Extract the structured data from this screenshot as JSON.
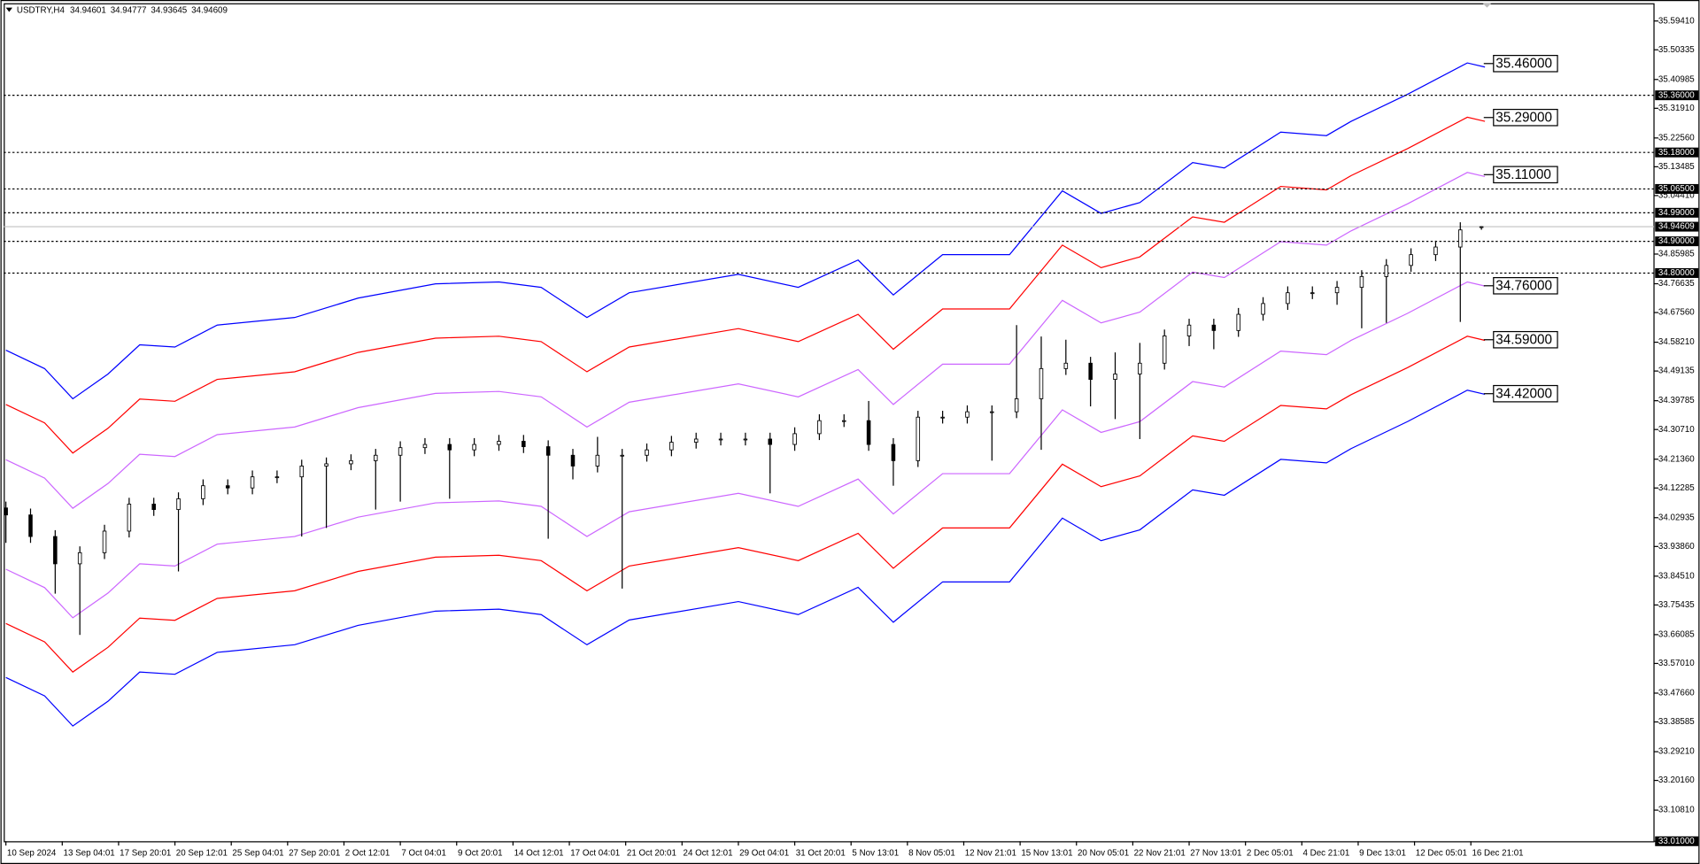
{
  "chart_data": {
    "type": "candlestick",
    "symbol": "USDTRY,H4",
    "xlim": [
      0,
      468
    ],
    "xticks": [
      {
        "value": 0,
        "label": "10 Sep 2024"
      },
      {
        "value": 16,
        "label": "13 Sep 04:01"
      },
      {
        "value": 32,
        "label": "17 Sep 20:01"
      },
      {
        "value": 48,
        "label": "20 Sep 12:01"
      },
      {
        "value": 64,
        "label": "25 Sep 04:01"
      },
      {
        "value": 80,
        "label": "27 Sep 20:01"
      },
      {
        "value": 96,
        "label": "2 Oct 12:01"
      },
      {
        "value": 112,
        "label": "7 Oct 04:01"
      },
      {
        "value": 128,
        "label": "9 Oct 20:01"
      },
      {
        "value": 144,
        "label": "14 Oct 12:01"
      },
      {
        "value": 160,
        "label": "17 Oct 04:01"
      },
      {
        "value": 176,
        "label": "21 Oct 20:01"
      },
      {
        "value": 192,
        "label": "24 Oct 12:01"
      },
      {
        "value": 208,
        "label": "29 Oct 04:01"
      },
      {
        "value": 224,
        "label": "31 Oct 20:01"
      },
      {
        "value": 240,
        "label": "5 Nov 13:01"
      },
      {
        "value": 256,
        "label": "8 Nov 05:01"
      },
      {
        "value": 272,
        "label": "12 Nov 21:01"
      },
      {
        "value": 288,
        "label": "15 Nov 13:01"
      },
      {
        "value": 304,
        "label": "20 Nov 05:01"
      },
      {
        "value": 320,
        "label": "22 Nov 21:01"
      },
      {
        "value": 336,
        "label": "27 Nov 13:01"
      },
      {
        "value": 352,
        "label": "2 Dec 05:01"
      },
      {
        "value": 368,
        "label": "4 Dec 21:01"
      },
      {
        "value": 384,
        "label": "9 Dec 13:01"
      },
      {
        "value": 400,
        "label": "12 Dec 05:01"
      },
      {
        "value": 416,
        "label": "16 Dec 21:01"
      }
    ],
    "ylim": [
      33.01,
      35.65
    ],
    "yticks": [
      {
        "value": 35.5941,
        "label": "35.59410"
      },
      35.50335,
      35.40985,
      {
        "value": 35.3191,
        "label": "35.31910"
      },
      {
        "value": 35.2256,
        "label": "35.22560"
      },
      35.13485,
      {
        "value": 35.0441,
        "label": "35.04410"
      },
      34.85985,
      34.76635,
      {
        "value": 34.6756,
        "label": "34.67560"
      },
      {
        "value": 34.5821,
        "label": "34.58210"
      },
      34.49135,
      34.39785,
      {
        "value": 34.3071,
        "label": "34.30710"
      },
      {
        "value": 34.2136,
        "label": "34.21360"
      },
      34.12285,
      34.02935,
      {
        "value": 33.9386,
        "label": "33.93860"
      },
      {
        "value": 33.8451,
        "label": "33.84510"
      },
      33.75435,
      33.66085,
      {
        "value": 33.5701,
        "label": "33.57010"
      },
      {
        "value": 33.4766,
        "label": "33.47660"
      },
      33.38585,
      {
        "value": 33.2921,
        "label": "33.29210"
      },
      {
        "value": 33.2016,
        "label": "33.20160"
      },
      {
        "value": 33.1081,
        "label": "33.10810"
      },
      {
        "value": 33.01,
        "label": "33.01000"
      }
    ],
    "candles": {
      "x": [
        0,
        7,
        14,
        21,
        28,
        35,
        42,
        49,
        56,
        63,
        70,
        77,
        84,
        91,
        98,
        105,
        112,
        119,
        126,
        133,
        140,
        147,
        154,
        161,
        168,
        175,
        182,
        189,
        196,
        203,
        210,
        217,
        224,
        231,
        238,
        245,
        252,
        259,
        266,
        273,
        280,
        287,
        294,
        301,
        308,
        315,
        322,
        329,
        336,
        343,
        350,
        357,
        364,
        371,
        378,
        385,
        392,
        399,
        406,
        413,
        419
      ],
      "open": [
        34.06,
        34.038,
        33.97,
        33.884,
        33.919,
        33.987,
        34.072,
        34.055,
        34.089,
        34.13,
        34.123,
        34.158,
        34.158,
        34.192,
        34.199,
        34.209,
        34.226,
        34.25,
        34.26,
        34.243,
        34.26,
        34.27,
        34.253,
        34.226,
        34.192,
        34.226,
        34.226,
        34.243,
        34.267,
        34.277,
        34.277,
        34.277,
        34.26,
        34.294,
        34.335,
        34.335,
        34.26,
        34.209,
        34.346,
        34.346,
        34.363,
        34.363,
        34.404,
        34.499,
        34.516,
        34.465,
        34.482,
        34.516,
        34.602,
        34.636,
        34.619,
        34.67,
        34.704,
        34.738,
        34.738,
        34.755,
        34.789,
        34.824,
        34.858,
        34.882,
        34.94601
      ],
      "high": [
        34.08,
        34.058,
        33.99,
        33.939,
        34.007,
        34.092,
        34.092,
        34.109,
        34.15,
        34.15,
        34.178,
        34.178,
        34.212,
        34.219,
        34.229,
        34.246,
        34.27,
        34.28,
        34.28,
        34.28,
        34.29,
        34.29,
        34.273,
        34.246,
        34.284,
        34.246,
        34.263,
        34.287,
        34.297,
        34.297,
        34.297,
        34.297,
        34.314,
        34.355,
        34.355,
        34.397,
        34.28,
        34.366,
        34.366,
        34.383,
        34.383,
        34.636,
        34.6,
        34.59,
        34.536,
        34.55,
        34.58,
        34.622,
        34.656,
        34.656,
        34.69,
        34.724,
        34.758,
        34.758,
        34.775,
        34.809,
        34.844,
        34.878,
        34.902,
        34.96,
        34.94777
      ],
      "low": [
        33.95,
        33.95,
        33.79,
        33.66,
        33.899,
        33.967,
        34.035,
        33.86,
        34.069,
        34.103,
        34.103,
        34.138,
        33.97,
        33.997,
        34.179,
        34.055,
        34.08,
        34.23,
        34.089,
        34.223,
        34.24,
        34.233,
        33.963,
        34.15,
        34.172,
        33.806,
        34.206,
        34.223,
        34.247,
        34.257,
        34.257,
        34.106,
        34.24,
        34.274,
        34.315,
        34.24,
        34.13,
        34.189,
        34.326,
        34.326,
        34.209,
        34.343,
        34.243,
        34.479,
        34.38,
        34.34,
        34.277,
        34.496,
        34.57,
        34.56,
        34.599,
        34.65,
        34.684,
        34.718,
        34.7,
        34.626,
        34.643,
        34.804,
        34.838,
        34.646,
        34.93645
      ],
      "close": [
        34.038,
        33.97,
        33.884,
        33.919,
        33.987,
        34.072,
        34.055,
        34.089,
        34.13,
        34.123,
        34.158,
        34.158,
        34.192,
        34.199,
        34.209,
        34.226,
        34.25,
        34.26,
        34.243,
        34.26,
        34.27,
        34.253,
        34.226,
        34.192,
        34.226,
        34.226,
        34.243,
        34.267,
        34.277,
        34.277,
        34.277,
        34.26,
        34.294,
        34.335,
        34.335,
        34.26,
        34.209,
        34.346,
        34.346,
        34.363,
        34.363,
        34.404,
        34.499,
        34.516,
        34.465,
        34.482,
        34.516,
        34.602,
        34.636,
        34.619,
        34.67,
        34.704,
        34.738,
        34.738,
        34.755,
        34.789,
        34.824,
        34.858,
        34.882,
        34.936,
        34.94609
      ]
    },
    "bands": {
      "x": [
        0,
        11,
        19,
        29,
        38,
        48,
        60,
        82,
        100,
        122,
        140,
        152,
        165,
        177,
        208,
        225,
        242,
        252,
        266,
        285,
        300,
        311,
        322,
        337,
        346,
        362,
        375,
        382,
        398,
        415,
        420
      ],
      "series": [
        {
          "color": "#0000ff",
          "end_label": {
            "value": 35.46,
            "label": "35.46000"
          },
          "values": [
            34.557,
            34.499,
            34.404,
            34.482,
            34.574,
            34.567,
            34.636,
            34.66,
            34.721,
            34.766,
            34.772,
            34.755,
            34.66,
            34.738,
            34.796,
            34.755,
            34.841,
            34.731,
            34.858,
            34.858,
            35.059,
            34.988,
            35.022,
            35.148,
            35.131,
            35.244,
            35.233,
            35.278,
            35.363,
            35.462,
            35.449
          ]
        },
        {
          "color": "#ff0000",
          "end_label": {
            "value": 35.29,
            "label": "35.29000"
          },
          "values": [
            34.386,
            34.328,
            34.233,
            34.311,
            34.403,
            34.396,
            34.465,
            34.489,
            34.55,
            34.595,
            34.601,
            34.584,
            34.489,
            34.567,
            34.625,
            34.584,
            34.67,
            34.56,
            34.687,
            34.687,
            34.888,
            34.817,
            34.851,
            34.977,
            34.96,
            35.073,
            35.062,
            35.107,
            35.192,
            35.291,
            35.278
          ]
        },
        {
          "color": "#cc66ff",
          "end_label": {
            "value": 35.11,
            "label": "35.11000"
          },
          "values": [
            34.212,
            34.154,
            34.059,
            34.137,
            34.229,
            34.222,
            34.291,
            34.315,
            34.376,
            34.421,
            34.427,
            34.41,
            34.315,
            34.393,
            34.451,
            34.41,
            34.496,
            34.386,
            34.513,
            34.513,
            34.714,
            34.643,
            34.677,
            34.803,
            34.786,
            34.899,
            34.888,
            34.933,
            35.018,
            35.117,
            35.104
          ]
        },
        {
          "color": "#cc66ff",
          "end_label": {
            "value": 34.76,
            "label": "34.76000"
          },
          "values": [
            33.867,
            33.809,
            33.714,
            33.792,
            33.884,
            33.877,
            33.946,
            33.97,
            34.031,
            34.076,
            34.082,
            34.065,
            33.97,
            34.048,
            34.106,
            34.065,
            34.151,
            34.041,
            34.168,
            34.168,
            34.369,
            34.298,
            34.332,
            34.458,
            34.441,
            34.554,
            34.543,
            34.588,
            34.673,
            34.772,
            34.759
          ]
        },
        {
          "color": "#ff0000",
          "end_label": {
            "value": 34.59,
            "label": "34.59000"
          },
          "values": [
            33.696,
            33.638,
            33.543,
            33.621,
            33.713,
            33.706,
            33.775,
            33.799,
            33.86,
            33.905,
            33.911,
            33.894,
            33.799,
            33.877,
            33.935,
            33.894,
            33.98,
            33.87,
            33.997,
            33.997,
            34.198,
            34.127,
            34.161,
            34.287,
            34.27,
            34.383,
            34.372,
            34.417,
            34.502,
            34.601,
            34.588
          ]
        },
        {
          "color": "#0000ff",
          "end_label": {
            "value": 34.42,
            "label": "34.42000"
          },
          "values": [
            33.526,
            33.468,
            33.373,
            33.451,
            33.543,
            33.536,
            33.605,
            33.629,
            33.69,
            33.735,
            33.741,
            33.724,
            33.629,
            33.707,
            33.765,
            33.724,
            33.81,
            33.7,
            33.827,
            33.827,
            34.028,
            33.957,
            33.991,
            34.117,
            34.1,
            34.213,
            34.202,
            34.247,
            34.332,
            34.431,
            34.418
          ]
        }
      ]
    },
    "levels": [
      {
        "value": 35.36,
        "label": "35.36000"
      },
      {
        "value": 35.18,
        "label": "35.18000"
      },
      {
        "value": 35.065,
        "label": "35.06500"
      },
      {
        "value": 34.99,
        "label": "34.99000"
      },
      {
        "value": 34.9,
        "label": "34.90000"
      },
      {
        "value": 34.8,
        "label": "34.80000"
      }
    ]
  }
}
